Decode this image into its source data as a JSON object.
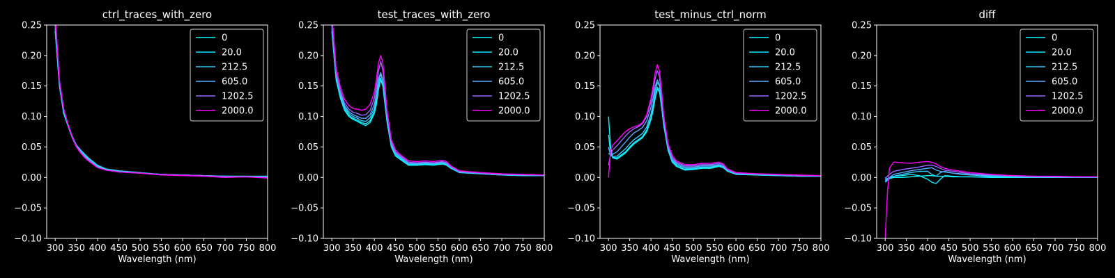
{
  "chart_data": [
    {
      "type": "line",
      "title": "ctrl_traces_with_zero",
      "xlabel": "Wavelength (nm)",
      "xlim": [
        280,
        800
      ],
      "ylim": [
        -0.1,
        0.25
      ],
      "xticks": [
        300,
        350,
        400,
        450,
        500,
        550,
        600,
        650,
        700,
        750,
        800
      ],
      "yticks": [
        "0.25",
        "0.20",
        "0.15",
        "0.10",
        "0.05",
        "0.00",
        "−0.05",
        "−0.10"
      ],
      "legend_position": "top-right",
      "x": [
        300,
        310,
        320,
        330,
        340,
        350,
        360,
        370,
        380,
        400,
        420,
        450,
        500,
        550,
        600,
        650,
        700,
        750,
        800
      ],
      "series": [
        {
          "name": "0",
          "color": "#00ffff",
          "values": [
            0.24,
            0.15,
            0.105,
            0.085,
            0.065,
            0.05,
            0.042,
            0.035,
            0.028,
            0.018,
            0.013,
            0.01,
            0.007,
            0.005,
            0.004,
            0.003,
            0.002,
            0.002,
            0.002
          ]
        },
        {
          "name": "20.0",
          "color": "#15e9ff",
          "values": [
            0.24,
            0.15,
            0.105,
            0.085,
            0.066,
            0.051,
            0.043,
            0.036,
            0.03,
            0.019,
            0.014,
            0.01,
            0.007,
            0.005,
            0.004,
            0.003,
            0.002,
            0.002,
            0.002
          ]
        },
        {
          "name": "212.5",
          "color": "#33ccff",
          "values": [
            0.245,
            0.152,
            0.108,
            0.087,
            0.068,
            0.053,
            0.045,
            0.038,
            0.031,
            0.02,
            0.014,
            0.011,
            0.008,
            0.005,
            0.004,
            0.003,
            0.002,
            0.002,
            0.001
          ]
        },
        {
          "name": "605.0",
          "color": "#55aaff",
          "values": [
            0.25,
            0.155,
            0.11,
            0.088,
            0.068,
            0.052,
            0.042,
            0.034,
            0.028,
            0.017,
            0.012,
            0.009,
            0.007,
            0.005,
            0.004,
            0.003,
            0.002,
            0.001,
            0.001
          ]
        },
        {
          "name": "1202.5",
          "color": "#9a66ff",
          "values": [
            0.26,
            0.158,
            0.112,
            0.088,
            0.067,
            0.051,
            0.041,
            0.033,
            0.027,
            0.016,
            0.012,
            0.009,
            0.007,
            0.005,
            0.004,
            0.003,
            0.001,
            0.001,
            0.0
          ]
        },
        {
          "name": "2000.0",
          "color": "#ff00ff",
          "values": [
            0.27,
            0.16,
            0.113,
            0.087,
            0.066,
            0.05,
            0.04,
            0.032,
            0.026,
            0.016,
            0.012,
            0.009,
            0.007,
            0.004,
            0.003,
            0.002,
            0.0,
            0.001,
            -0.001
          ]
        }
      ]
    },
    {
      "type": "line",
      "title": "test_traces_with_zero",
      "xlabel": "Wavelength (nm)",
      "xlim": [
        280,
        800
      ],
      "ylim": [
        -0.1,
        0.25
      ],
      "xticks": [
        300,
        350,
        400,
        450,
        500,
        550,
        600,
        650,
        700,
        750,
        800
      ],
      "yticks": [
        "0.25",
        "0.20",
        "0.15",
        "0.10",
        "0.05",
        "0.00",
        "−0.05",
        "−0.10"
      ],
      "legend_position": "top-right",
      "x": [
        300,
        310,
        320,
        330,
        340,
        350,
        360,
        370,
        380,
        390,
        400,
        405,
        410,
        415,
        420,
        425,
        430,
        440,
        450,
        460,
        480,
        500,
        520,
        540,
        560,
        570,
        580,
        600,
        650,
        700,
        750,
        800
      ],
      "series": [
        {
          "name": "0",
          "color": "#00ffff",
          "values": [
            0.24,
            0.16,
            0.13,
            0.11,
            0.1,
            0.095,
            0.092,
            0.088,
            0.085,
            0.09,
            0.105,
            0.12,
            0.145,
            0.16,
            0.15,
            0.12,
            0.09,
            0.05,
            0.035,
            0.03,
            0.02,
            0.02,
            0.021,
            0.02,
            0.022,
            0.02,
            0.015,
            0.008,
            0.006,
            0.004,
            0.003,
            0.003
          ]
        },
        {
          "name": "20.0",
          "color": "#15e9ff",
          "values": [
            0.24,
            0.162,
            0.132,
            0.112,
            0.102,
            0.097,
            0.094,
            0.09,
            0.088,
            0.093,
            0.108,
            0.123,
            0.148,
            0.163,
            0.152,
            0.122,
            0.092,
            0.051,
            0.036,
            0.031,
            0.021,
            0.021,
            0.022,
            0.021,
            0.023,
            0.021,
            0.016,
            0.008,
            0.006,
            0.004,
            0.003,
            0.003
          ]
        },
        {
          "name": "212.5",
          "color": "#33ccff",
          "values": [
            0.245,
            0.165,
            0.135,
            0.115,
            0.105,
            0.1,
            0.097,
            0.093,
            0.092,
            0.098,
            0.113,
            0.13,
            0.155,
            0.17,
            0.158,
            0.127,
            0.095,
            0.053,
            0.038,
            0.033,
            0.022,
            0.022,
            0.023,
            0.022,
            0.024,
            0.022,
            0.016,
            0.009,
            0.006,
            0.004,
            0.004,
            0.003
          ]
        },
        {
          "name": "605.0",
          "color": "#55aaff",
          "values": [
            0.25,
            0.168,
            0.138,
            0.118,
            0.108,
            0.103,
            0.1,
            0.097,
            0.097,
            0.103,
            0.12,
            0.138,
            0.162,
            0.172,
            0.16,
            0.13,
            0.097,
            0.055,
            0.04,
            0.034,
            0.023,
            0.023,
            0.024,
            0.023,
            0.025,
            0.023,
            0.017,
            0.009,
            0.007,
            0.005,
            0.004,
            0.003
          ]
        },
        {
          "name": "1202.5",
          "color": "#9a66ff",
          "values": [
            0.26,
            0.172,
            0.142,
            0.122,
            0.112,
            0.107,
            0.105,
            0.102,
            0.103,
            0.11,
            0.13,
            0.15,
            0.175,
            0.19,
            0.176,
            0.142,
            0.105,
            0.058,
            0.042,
            0.036,
            0.025,
            0.024,
            0.025,
            0.024,
            0.026,
            0.024,
            0.018,
            0.01,
            0.007,
            0.005,
            0.004,
            0.004
          ]
        },
        {
          "name": "2000.0",
          "color": "#ff00ff",
          "values": [
            0.27,
            0.18,
            0.148,
            0.128,
            0.118,
            0.113,
            0.112,
            0.11,
            0.112,
            0.12,
            0.14,
            0.162,
            0.188,
            0.2,
            0.188,
            0.15,
            0.11,
            0.062,
            0.045,
            0.038,
            0.027,
            0.026,
            0.027,
            0.026,
            0.028,
            0.026,
            0.019,
            0.011,
            0.008,
            0.006,
            0.005,
            0.004
          ]
        }
      ]
    },
    {
      "type": "line",
      "title": "test_minus_ctrl_norm",
      "xlabel": "Wavelength (nm)",
      "xlim": [
        280,
        800
      ],
      "ylim": [
        -0.1,
        0.25
      ],
      "xticks": [
        300,
        350,
        400,
        450,
        500,
        550,
        600,
        650,
        700,
        750,
        800
      ],
      "yticks": [
        "0.25",
        "0.20",
        "0.15",
        "0.10",
        "0.05",
        "0.00",
        "−0.05",
        "−0.10"
      ],
      "legend_position": "top-right",
      "x": [
        300,
        305,
        310,
        320,
        330,
        340,
        350,
        360,
        370,
        380,
        390,
        400,
        405,
        410,
        415,
        420,
        425,
        430,
        440,
        450,
        460,
        480,
        500,
        520,
        540,
        560,
        570,
        580,
        600,
        650,
        700,
        750,
        800
      ],
      "series": [
        {
          "name": "0",
          "color": "#00ffff",
          "values": [
            0.1,
            0.05,
            0.032,
            0.03,
            0.035,
            0.04,
            0.048,
            0.055,
            0.06,
            0.065,
            0.075,
            0.095,
            0.11,
            0.13,
            0.145,
            0.14,
            0.115,
            0.085,
            0.045,
            0.025,
            0.018,
            0.012,
            0.013,
            0.015,
            0.015,
            0.018,
            0.016,
            0.01,
            0.005,
            0.004,
            0.003,
            0.002,
            0.002
          ]
        },
        {
          "name": "20.0",
          "color": "#15e9ff",
          "values": [
            0.07,
            0.04,
            0.033,
            0.032,
            0.037,
            0.042,
            0.05,
            0.057,
            0.062,
            0.067,
            0.078,
            0.098,
            0.113,
            0.133,
            0.148,
            0.143,
            0.118,
            0.087,
            0.047,
            0.026,
            0.019,
            0.013,
            0.014,
            0.016,
            0.016,
            0.019,
            0.017,
            0.011,
            0.005,
            0.004,
            0.003,
            0.002,
            0.002
          ]
        },
        {
          "name": "212.5",
          "color": "#33ccff",
          "values": [
            0.05,
            0.036,
            0.034,
            0.035,
            0.041,
            0.047,
            0.055,
            0.062,
            0.067,
            0.072,
            0.083,
            0.104,
            0.12,
            0.142,
            0.156,
            0.15,
            0.123,
            0.09,
            0.049,
            0.028,
            0.021,
            0.015,
            0.015,
            0.017,
            0.017,
            0.02,
            0.018,
            0.011,
            0.006,
            0.005,
            0.003,
            0.002,
            0.002
          ]
        },
        {
          "name": "605.0",
          "color": "#55aaff",
          "values": [
            0.04,
            0.036,
            0.038,
            0.042,
            0.05,
            0.058,
            0.066,
            0.073,
            0.077,
            0.082,
            0.093,
            0.115,
            0.131,
            0.15,
            0.16,
            0.152,
            0.125,
            0.092,
            0.05,
            0.03,
            0.023,
            0.017,
            0.017,
            0.019,
            0.019,
            0.021,
            0.019,
            0.012,
            0.006,
            0.005,
            0.004,
            0.003,
            0.002
          ]
        },
        {
          "name": "1202.5",
          "color": "#9a66ff",
          "values": [
            0.02,
            0.038,
            0.045,
            0.052,
            0.06,
            0.068,
            0.075,
            0.08,
            0.083,
            0.088,
            0.1,
            0.124,
            0.142,
            0.163,
            0.175,
            0.165,
            0.135,
            0.098,
            0.053,
            0.033,
            0.025,
            0.019,
            0.019,
            0.021,
            0.021,
            0.023,
            0.021,
            0.013,
            0.007,
            0.006,
            0.004,
            0.003,
            0.003
          ]
        },
        {
          "name": "2000.0",
          "color": "#ff00ff",
          "values": [
            0.0,
            0.045,
            0.053,
            0.06,
            0.068,
            0.075,
            0.08,
            0.083,
            0.085,
            0.09,
            0.103,
            0.13,
            0.15,
            0.172,
            0.185,
            0.175,
            0.142,
            0.102,
            0.056,
            0.036,
            0.027,
            0.021,
            0.021,
            0.023,
            0.023,
            0.025,
            0.022,
            0.014,
            0.008,
            0.006,
            0.005,
            0.004,
            0.003
          ]
        }
      ]
    },
    {
      "type": "line",
      "title": "diff",
      "xlabel": "Wavelength (nm)",
      "xlim": [
        280,
        800
      ],
      "ylim": [
        -0.1,
        0.25
      ],
      "xticks": [
        300,
        350,
        400,
        450,
        500,
        550,
        600,
        650,
        700,
        750,
        800
      ],
      "yticks": [
        "0.25",
        "0.20",
        "0.15",
        "0.10",
        "0.05",
        "0.00",
        "−0.05",
        "−0.10"
      ],
      "legend_position": "top-right",
      "x": [
        300,
        305,
        310,
        320,
        340,
        360,
        380,
        400,
        410,
        420,
        430,
        440,
        460,
        480,
        500,
        550,
        600,
        650,
        700,
        750,
        800
      ],
      "series": [
        {
          "name": "0",
          "color": "#00ffff",
          "values": [
            0.0,
            -0.003,
            -0.002,
            0.0,
            0.0,
            0.001,
            0.002,
            0.003,
            0.003,
            0.002,
            0.002,
            0.002,
            0.001,
            0.001,
            0.001,
            0.0,
            0.0,
            0.0,
            0.0,
            0.0,
            0.001
          ]
        },
        {
          "name": "20.0",
          "color": "#15e9ff",
          "values": [
            -0.005,
            -0.002,
            0.0,
            0.002,
            0.003,
            0.005,
            0.003,
            -0.003,
            -0.008,
            -0.01,
            -0.003,
            0.003,
            0.002,
            0.001,
            0.001,
            0.001,
            0.0,
            0.0,
            0.0,
            0.0,
            0.0
          ]
        },
        {
          "name": "212.5",
          "color": "#33ccff",
          "values": [
            -0.008,
            -0.005,
            -0.002,
            0.002,
            0.005,
            0.008,
            0.01,
            0.01,
            0.005,
            0.002,
            0.008,
            0.01,
            0.007,
            0.005,
            0.004,
            0.002,
            0.001,
            0.0,
            0.0,
            0.0,
            0.0
          ]
        },
        {
          "name": "605.0",
          "color": "#55aaff",
          "values": [
            -0.006,
            -0.003,
            0.0,
            0.005,
            0.008,
            0.011,
            0.013,
            0.015,
            0.016,
            0.012,
            0.01,
            0.009,
            0.007,
            0.006,
            0.005,
            0.003,
            0.002,
            0.001,
            0.001,
            0.0,
            0.0
          ]
        },
        {
          "name": "1202.5",
          "color": "#9a66ff",
          "values": [
            -0.002,
            0.002,
            0.005,
            0.01,
            0.013,
            0.015,
            0.017,
            0.02,
            0.02,
            0.018,
            0.015,
            0.012,
            0.01,
            0.008,
            0.006,
            0.004,
            0.003,
            0.002,
            0.001,
            0.001,
            0.001
          ]
        },
        {
          "name": "2000.0",
          "color": "#ff00ff",
          "values": [
            -0.1,
            -0.03,
            0.015,
            0.025,
            0.024,
            0.023,
            0.025,
            0.026,
            0.025,
            0.022,
            0.018,
            0.015,
            0.012,
            0.01,
            0.008,
            0.005,
            0.003,
            0.002,
            0.002,
            0.001,
            0.001
          ]
        }
      ]
    }
  ]
}
